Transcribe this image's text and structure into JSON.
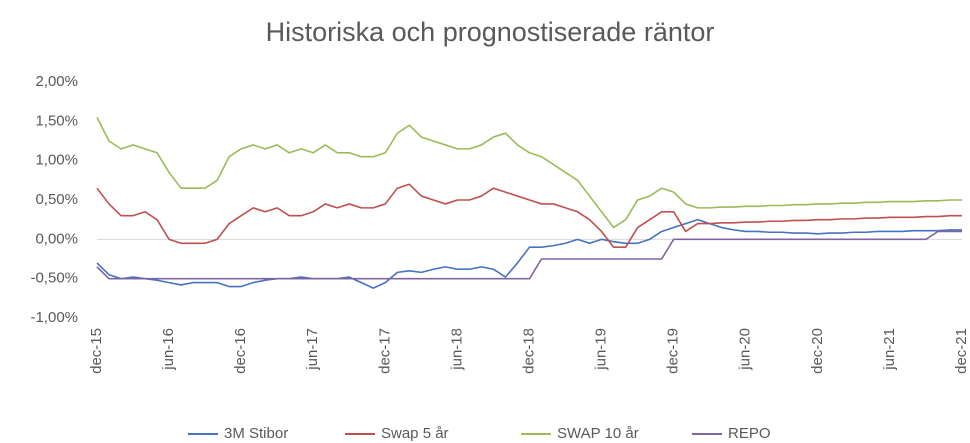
{
  "chart_data": {
    "type": "line",
    "title": "Historiska och prognostiserade räntor",
    "categories": [
      "dec-15",
      null,
      null,
      null,
      null,
      null,
      "jun-16",
      null,
      null,
      null,
      null,
      null,
      "dec-16",
      null,
      null,
      null,
      null,
      null,
      "jun-17",
      null,
      null,
      null,
      null,
      null,
      "dec-17",
      null,
      null,
      null,
      null,
      null,
      "jun-18",
      null,
      null,
      null,
      null,
      null,
      "dec-18",
      null,
      null,
      null,
      null,
      null,
      "jun-19",
      null,
      null,
      null,
      null,
      null,
      "dec-19",
      null,
      null,
      null,
      null,
      null,
      "jun-20",
      null,
      null,
      null,
      null,
      null,
      "dec-20",
      null,
      null,
      null,
      null,
      null,
      "jun-21",
      null,
      null,
      null,
      null,
      null,
      "dec-21"
    ],
    "series": [
      {
        "name": "3M Stibor",
        "color": "#4472c4",
        "values": [
          -0.3,
          -0.45,
          -0.5,
          -0.48,
          -0.5,
          -0.52,
          -0.55,
          -0.58,
          -0.55,
          -0.55,
          -0.55,
          -0.6,
          -0.6,
          -0.55,
          -0.52,
          -0.5,
          -0.5,
          -0.48,
          -0.5,
          -0.5,
          -0.5,
          -0.48,
          -0.55,
          -0.62,
          -0.55,
          -0.42,
          -0.4,
          -0.42,
          -0.38,
          -0.35,
          -0.38,
          -0.38,
          -0.35,
          -0.38,
          -0.48,
          -0.3,
          -0.1,
          -0.1,
          -0.08,
          -0.05,
          0.0,
          -0.05,
          0.0,
          -0.03,
          -0.05,
          -0.05,
          0.0,
          0.1,
          0.15,
          0.2,
          0.25,
          0.2,
          0.15,
          0.12,
          0.1,
          0.1,
          0.09,
          0.09,
          0.08,
          0.08,
          0.07,
          0.08,
          0.08,
          0.09,
          0.09,
          0.1,
          0.1,
          0.1,
          0.11,
          0.11,
          0.11,
          0.12,
          0.12
        ]
      },
      {
        "name": "Swap 5 år",
        "color": "#c0504d",
        "values": [
          0.65,
          0.45,
          0.3,
          0.3,
          0.35,
          0.25,
          0.0,
          -0.05,
          -0.05,
          -0.05,
          0.0,
          0.2,
          0.3,
          0.4,
          0.35,
          0.4,
          0.3,
          0.3,
          0.35,
          0.45,
          0.4,
          0.45,
          0.4,
          0.4,
          0.45,
          0.65,
          0.7,
          0.55,
          0.5,
          0.45,
          0.5,
          0.5,
          0.55,
          0.65,
          0.6,
          0.55,
          0.5,
          0.45,
          0.45,
          0.4,
          0.35,
          0.25,
          0.1,
          -0.1,
          -0.1,
          0.15,
          0.25,
          0.35,
          0.35,
          0.1,
          0.2,
          0.2,
          0.21,
          0.21,
          0.22,
          0.22,
          0.23,
          0.23,
          0.24,
          0.24,
          0.25,
          0.25,
          0.26,
          0.26,
          0.27,
          0.27,
          0.28,
          0.28,
          0.28,
          0.29,
          0.29,
          0.3,
          0.3
        ]
      },
      {
        "name": "SWAP 10 år",
        "color": "#9bbb59",
        "values": [
          1.55,
          1.25,
          1.15,
          1.2,
          1.15,
          1.1,
          0.85,
          0.65,
          0.65,
          0.65,
          0.75,
          1.05,
          1.15,
          1.2,
          1.15,
          1.2,
          1.1,
          1.15,
          1.1,
          1.2,
          1.1,
          1.1,
          1.05,
          1.05,
          1.1,
          1.35,
          1.45,
          1.3,
          1.25,
          1.2,
          1.15,
          1.15,
          1.2,
          1.3,
          1.35,
          1.2,
          1.1,
          1.05,
          0.95,
          0.85,
          0.75,
          0.55,
          0.35,
          0.15,
          0.25,
          0.5,
          0.55,
          0.65,
          0.6,
          0.45,
          0.4,
          0.4,
          0.41,
          0.41,
          0.42,
          0.42,
          0.43,
          0.43,
          0.44,
          0.44,
          0.45,
          0.45,
          0.46,
          0.46,
          0.47,
          0.47,
          0.48,
          0.48,
          0.48,
          0.49,
          0.49,
          0.5,
          0.5
        ]
      },
      {
        "name": "REPO",
        "color": "#8064a2",
        "values": [
          -0.35,
          -0.5,
          -0.5,
          -0.5,
          -0.5,
          -0.5,
          -0.5,
          -0.5,
          -0.5,
          -0.5,
          -0.5,
          -0.5,
          -0.5,
          -0.5,
          -0.5,
          -0.5,
          -0.5,
          -0.5,
          -0.5,
          -0.5,
          -0.5,
          -0.5,
          -0.5,
          -0.5,
          -0.5,
          -0.5,
          -0.5,
          -0.5,
          -0.5,
          -0.5,
          -0.5,
          -0.5,
          -0.5,
          -0.5,
          -0.5,
          -0.5,
          -0.5,
          -0.25,
          -0.25,
          -0.25,
          -0.25,
          -0.25,
          -0.25,
          -0.25,
          -0.25,
          -0.25,
          -0.25,
          -0.25,
          0.0,
          0.0,
          0.0,
          0.0,
          0.0,
          0.0,
          0.0,
          0.0,
          0.0,
          0.0,
          0.0,
          0.0,
          0.0,
          0.0,
          0.0,
          0.0,
          0.0,
          0.0,
          0.0,
          0.0,
          0.0,
          0.0,
          0.1,
          0.1,
          0.1
        ]
      }
    ],
    "ylim": [
      -1,
      2
    ],
    "yticks": [
      {
        "value": 2,
        "label": "2,00%"
      },
      {
        "value": 1.5,
        "label": "1,50%"
      },
      {
        "value": 1,
        "label": "1,00%"
      },
      {
        "value": 0.5,
        "label": "0,50%"
      },
      {
        "value": 0,
        "label": "0,00%"
      },
      {
        "value": -0.5,
        "label": "-0,50%"
      },
      {
        "value": -1,
        "label": "-1,00%"
      }
    ],
    "grid": false,
    "legend": "bottom"
  }
}
